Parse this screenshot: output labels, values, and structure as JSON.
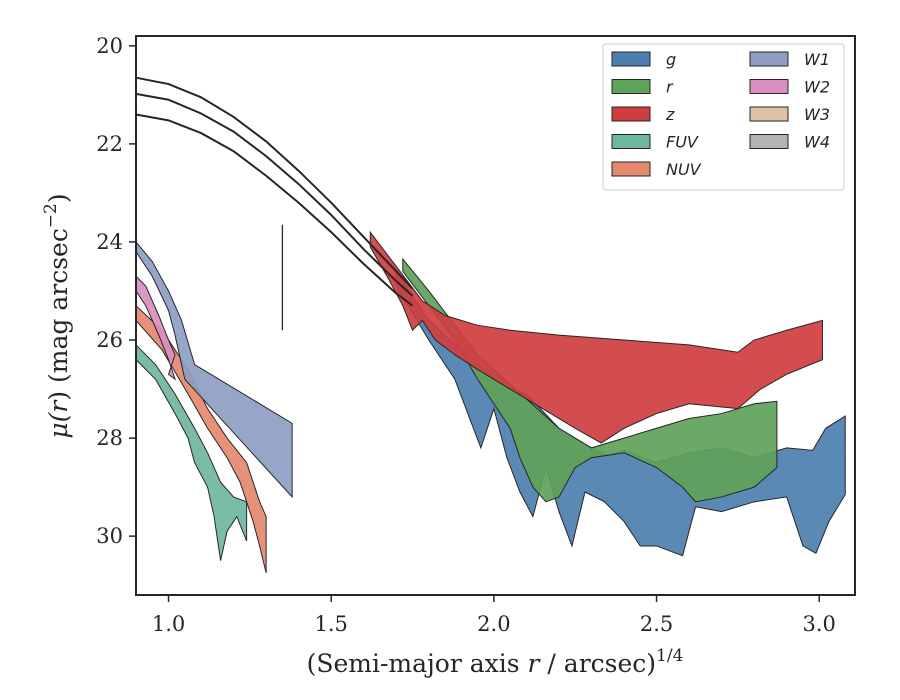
{
  "chart_data": {
    "type": "area",
    "xlabel_main": "(Semi-major axis ",
    "xlabel_var": "r",
    "xlabel_rest": " / arcsec)",
    "xlabel_sup": "1/4",
    "ylabel_main": "μ(",
    "ylabel_var": "r",
    "ylabel_rest": ") (mag arcsec",
    "ylabel_sup": "−2",
    "ylabel_end": ")",
    "xlim": [
      0.9,
      3.11
    ],
    "ylim": [
      31.2,
      19.8
    ],
    "y_inverted": true,
    "xticks": [
      {
        "value": 1.0,
        "label": "1.0"
      },
      {
        "value": 1.5,
        "label": "1.5"
      },
      {
        "value": 2.0,
        "label": "2.0"
      },
      {
        "value": 2.5,
        "label": "2.5"
      },
      {
        "value": 3.0,
        "label": "3.0"
      }
    ],
    "yticks": [
      {
        "value": 20,
        "label": "20"
      },
      {
        "value": 22,
        "label": "22"
      },
      {
        "value": 24,
        "label": "24"
      },
      {
        "value": 26,
        "label": "26"
      },
      {
        "value": 28,
        "label": "28"
      },
      {
        "value": 30,
        "label": "30"
      }
    ],
    "grid": false,
    "legend_position": "top-right",
    "legend_columns": 2,
    "vertical_marker": {
      "x": 1.35,
      "y_top": 23.65,
      "y_bottom": 25.8
    },
    "model_curves": [
      {
        "x": [
          0.9,
          1.0,
          1.1,
          1.2,
          1.3,
          1.4,
          1.5,
          1.6,
          1.7,
          1.75
        ],
        "y": [
          20.65,
          20.78,
          21.05,
          21.45,
          21.95,
          22.55,
          23.2,
          23.9,
          24.6,
          24.95
        ]
      },
      {
        "x": [
          0.9,
          1.0,
          1.1,
          1.2,
          1.3,
          1.4,
          1.5,
          1.6,
          1.7,
          1.75
        ],
        "y": [
          20.98,
          21.1,
          21.38,
          21.75,
          22.25,
          22.82,
          23.45,
          24.15,
          24.8,
          25.1
        ]
      },
      {
        "x": [
          0.9,
          1.0,
          1.1,
          1.2,
          1.3,
          1.4,
          1.5,
          1.6,
          1.7,
          1.75
        ],
        "y": [
          21.4,
          21.52,
          21.78,
          22.15,
          22.65,
          23.2,
          23.8,
          24.45,
          25.05,
          25.3
        ]
      }
    ],
    "series": [
      {
        "name": "g",
        "color": "#4c7faf",
        "upper": [
          [
            1.7,
            24.6
          ],
          [
            1.8,
            25.6
          ],
          [
            1.9,
            26.2
          ],
          [
            2.0,
            26.7
          ],
          [
            2.05,
            27.0
          ],
          [
            2.1,
            27.1
          ],
          [
            2.2,
            27.8
          ],
          [
            2.3,
            28.2
          ],
          [
            2.35,
            28.35
          ],
          [
            2.4,
            28.25
          ],
          [
            2.5,
            28.5
          ],
          [
            2.6,
            28.3
          ],
          [
            2.7,
            28.2
          ],
          [
            2.8,
            28.4
          ],
          [
            2.9,
            28.2
          ],
          [
            2.98,
            28.25
          ],
          [
            3.02,
            27.8
          ],
          [
            3.08,
            27.55
          ]
        ],
        "lower": [
          [
            1.7,
            24.9
          ],
          [
            1.8,
            26.0
          ],
          [
            1.88,
            26.8
          ],
          [
            1.92,
            27.5
          ],
          [
            1.96,
            28.2
          ],
          [
            2.0,
            27.4
          ],
          [
            2.04,
            28.4
          ],
          [
            2.08,
            29.1
          ],
          [
            2.12,
            29.6
          ],
          [
            2.16,
            28.6
          ],
          [
            2.2,
            29.5
          ],
          [
            2.24,
            30.2
          ],
          [
            2.28,
            29.1
          ],
          [
            2.34,
            29.3
          ],
          [
            2.4,
            29.7
          ],
          [
            2.45,
            30.2
          ],
          [
            2.5,
            30.2
          ],
          [
            2.58,
            30.4
          ],
          [
            2.62,
            29.4
          ],
          [
            2.7,
            29.5
          ],
          [
            2.8,
            29.3
          ],
          [
            2.9,
            29.2
          ],
          [
            2.95,
            30.2
          ],
          [
            2.99,
            30.35
          ],
          [
            3.03,
            29.7
          ],
          [
            3.08,
            29.15
          ]
        ]
      },
      {
        "name": "r",
        "color": "#5fa25a",
        "upper": [
          [
            1.72,
            24.35
          ],
          [
            1.8,
            25.0
          ],
          [
            1.88,
            25.7
          ],
          [
            1.95,
            26.3
          ],
          [
            2.0,
            26.6
          ],
          [
            2.05,
            26.9
          ],
          [
            2.1,
            27.2
          ],
          [
            2.15,
            27.5
          ],
          [
            2.2,
            27.8
          ],
          [
            2.3,
            28.2
          ],
          [
            2.4,
            28.0
          ],
          [
            2.5,
            27.8
          ],
          [
            2.6,
            27.6
          ],
          [
            2.7,
            27.5
          ],
          [
            2.8,
            27.3
          ],
          [
            2.87,
            27.25
          ]
        ],
        "lower": [
          [
            1.72,
            24.6
          ],
          [
            1.8,
            25.3
          ],
          [
            1.88,
            26.0
          ],
          [
            1.95,
            26.8
          ],
          [
            2.0,
            27.3
          ],
          [
            2.05,
            27.8
          ],
          [
            2.08,
            28.4
          ],
          [
            2.12,
            29.0
          ],
          [
            2.16,
            29.3
          ],
          [
            2.2,
            29.2
          ],
          [
            2.25,
            28.6
          ],
          [
            2.3,
            28.4
          ],
          [
            2.4,
            28.3
          ],
          [
            2.5,
            28.6
          ],
          [
            2.58,
            29.0
          ],
          [
            2.62,
            29.3
          ],
          [
            2.7,
            29.2
          ],
          [
            2.8,
            29.0
          ],
          [
            2.87,
            28.6
          ]
        ]
      },
      {
        "name": "z",
        "color": "#cf3d3f",
        "upper": [
          [
            1.62,
            23.8
          ],
          [
            1.7,
            24.5
          ],
          [
            1.78,
            25.2
          ],
          [
            1.85,
            25.5
          ],
          [
            1.95,
            25.7
          ],
          [
            2.05,
            25.8
          ],
          [
            2.2,
            25.9
          ],
          [
            2.4,
            26.0
          ],
          [
            2.6,
            26.1
          ],
          [
            2.75,
            26.25
          ],
          [
            2.8,
            26.0
          ],
          [
            2.9,
            25.8
          ],
          [
            3.01,
            25.6
          ]
        ],
        "lower": [
          [
            1.62,
            24.1
          ],
          [
            1.68,
            24.8
          ],
          [
            1.72,
            25.3
          ],
          [
            1.75,
            25.8
          ],
          [
            1.78,
            25.6
          ],
          [
            1.82,
            26.0
          ],
          [
            1.88,
            26.3
          ],
          [
            1.95,
            26.6
          ],
          [
            2.05,
            27.0
          ],
          [
            2.15,
            27.4
          ],
          [
            2.25,
            27.8
          ],
          [
            2.33,
            28.1
          ],
          [
            2.4,
            27.8
          ],
          [
            2.5,
            27.5
          ],
          [
            2.6,
            27.3
          ],
          [
            2.75,
            27.4
          ],
          [
            2.82,
            27.0
          ],
          [
            2.9,
            26.7
          ],
          [
            3.01,
            26.4
          ]
        ]
      },
      {
        "name": "FUV",
        "color": "#6fb6a0",
        "upper": [
          [
            0.9,
            26.1
          ],
          [
            0.96,
            26.5
          ],
          [
            1.02,
            27.1
          ],
          [
            1.08,
            27.8
          ],
          [
            1.12,
            28.3
          ],
          [
            1.16,
            28.9
          ],
          [
            1.2,
            29.2
          ],
          [
            1.24,
            29.3
          ]
        ],
        "lower": [
          [
            0.9,
            26.4
          ],
          [
            0.96,
            26.8
          ],
          [
            1.02,
            27.5
          ],
          [
            1.06,
            28.0
          ],
          [
            1.08,
            28.5
          ],
          [
            1.12,
            29.0
          ],
          [
            1.14,
            29.6
          ],
          [
            1.16,
            30.5
          ],
          [
            1.18,
            29.9
          ],
          [
            1.21,
            29.6
          ],
          [
            1.24,
            30.1
          ]
        ]
      },
      {
        "name": "NUV",
        "color": "#e4896e",
        "upper": [
          [
            0.9,
            25.3
          ],
          [
            0.98,
            25.8
          ],
          [
            1.06,
            26.6
          ],
          [
            1.12,
            27.4
          ],
          [
            1.18,
            28.0
          ],
          [
            1.24,
            28.5
          ],
          [
            1.28,
            29.3
          ],
          [
            1.3,
            29.6
          ]
        ],
        "lower": [
          [
            0.9,
            25.6
          ],
          [
            0.98,
            26.2
          ],
          [
            1.06,
            27.1
          ],
          [
            1.12,
            27.8
          ],
          [
            1.18,
            28.4
          ],
          [
            1.22,
            28.9
          ],
          [
            1.26,
            29.7
          ],
          [
            1.28,
            30.2
          ],
          [
            1.3,
            30.75
          ]
        ]
      },
      {
        "name": "W1",
        "color": "#8d9dc3",
        "upper": [
          [
            0.9,
            24.0
          ],
          [
            0.95,
            24.4
          ],
          [
            1.0,
            25.0
          ],
          [
            1.04,
            25.6
          ],
          [
            1.08,
            26.5
          ],
          [
            1.38,
            27.7
          ]
        ],
        "lower": [
          [
            0.9,
            24.2
          ],
          [
            0.95,
            24.7
          ],
          [
            1.0,
            25.4
          ],
          [
            1.02,
            25.9
          ],
          [
            1.05,
            26.8
          ],
          [
            1.38,
            29.2
          ]
        ]
      },
      {
        "name": "W2",
        "color": "#d98fc0",
        "upper": [
          [
            0.9,
            24.7
          ],
          [
            0.93,
            24.9
          ],
          [
            0.97,
            25.5
          ],
          [
            1.0,
            26.0
          ],
          [
            1.02,
            26.3
          ],
          [
            1.0,
            26.7
          ]
        ],
        "lower": [
          [
            0.9,
            25.0
          ],
          [
            0.93,
            25.3
          ],
          [
            0.97,
            25.9
          ],
          [
            1.0,
            26.4
          ],
          [
            1.02,
            26.8
          ],
          [
            1.0,
            26.7
          ]
        ]
      },
      {
        "name": "W3",
        "color": "#dcc1a3",
        "upper": [],
        "lower": []
      },
      {
        "name": "W4",
        "color": "#b3b3b3",
        "upper": [],
        "lower": []
      }
    ]
  }
}
